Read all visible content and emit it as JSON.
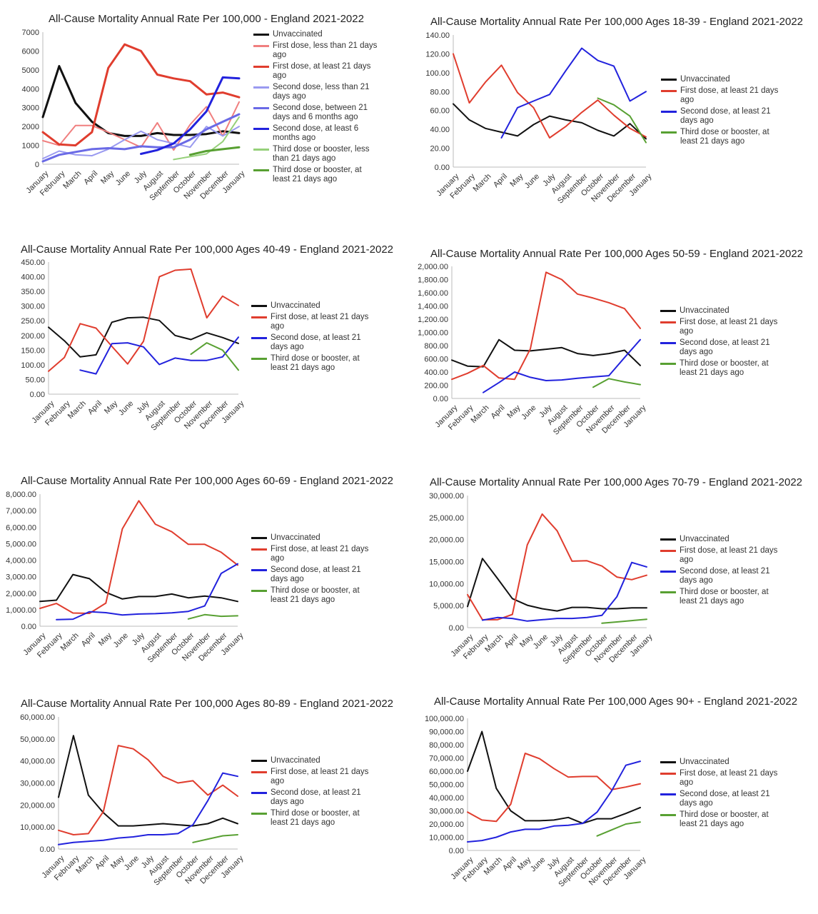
{
  "colors": {
    "black": "#111111",
    "red": "#e03d2e",
    "light_red": "#f07f7f",
    "blue": "#2222dd",
    "light_blue": "#9a9af0",
    "mid_blue": "#6a6ae6",
    "green": "#58a032",
    "light_green": "#96d07a"
  },
  "chart_data": [
    {
      "type": "line",
      "title": "All-Cause Mortality Annual Rate Per 100,000 - England 2021-2022",
      "categories": [
        "January",
        "February",
        "March",
        "April",
        "May",
        "June",
        "July",
        "August",
        "September",
        "October",
        "November",
        "December",
        "January"
      ],
      "y_ticks": [
        "0",
        "1000",
        "2000",
        "3000",
        "4000",
        "5000",
        "6000",
        "7000"
      ],
      "ylim": [
        0,
        7000
      ],
      "grid": false,
      "legend_position": "right",
      "series": [
        {
          "name": "Unvaccinated",
          "color": "black",
          "width": 3,
          "values": [
            2500,
            5200,
            3250,
            2250,
            1650,
            1500,
            1500,
            1650,
            1550,
            1550,
            1600,
            1750,
            1650
          ]
        },
        {
          "name": "First dose, less than 21 days ago",
          "color": "light_red",
          "width": 2,
          "values": [
            1250,
            1000,
            2050,
            2050,
            1700,
            1300,
            900,
            2200,
            750,
            2100,
            3050,
            1500,
            3300
          ]
        },
        {
          "name": "First dose, at least 21 days ago",
          "color": "red",
          "width": 3,
          "values": [
            1700,
            1050,
            1000,
            1700,
            5100,
            6350,
            6000,
            4750,
            4550,
            4400,
            3700,
            3800,
            3550
          ]
        },
        {
          "name": "Second dose, less than 21 days ago",
          "color": "light_blue",
          "width": 2,
          "values": [
            300,
            700,
            500,
            450,
            800,
            1300,
            1750,
            1300,
            1100,
            900,
            2000,
            1500,
            2000
          ]
        },
        {
          "name": "Second dose, between 21 days and 6 months ago",
          "color": "mid_blue",
          "width": 3,
          "values": [
            150,
            500,
            650,
            800,
            850,
            800,
            950,
            900,
            900,
            1300,
            1850,
            2250,
            2650
          ]
        },
        {
          "name": "Second dose, at least 6 months ago",
          "color": "blue",
          "width": 3,
          "values": [
            null,
            null,
            null,
            null,
            null,
            null,
            550,
            750,
            1100,
            1850,
            2800,
            4600,
            4550
          ]
        },
        {
          "name": "Third dose or booster, less than 21 days ago",
          "color": "light_green",
          "width": 2,
          "values": [
            null,
            null,
            null,
            null,
            null,
            null,
            null,
            null,
            250,
            400,
            550,
            1200,
            2500
          ]
        },
        {
          "name": "Third dose or booster, at least 21 days ago",
          "color": "green",
          "width": 3,
          "values": [
            null,
            null,
            null,
            null,
            null,
            null,
            null,
            null,
            null,
            500,
            700,
            800,
            900
          ]
        }
      ]
    },
    {
      "type": "line",
      "title": "All-Cause Mortality Annual Rate Per 100,000 Ages 18-39 - England 2021-2022",
      "categories": [
        "January",
        "February",
        "March",
        "April",
        "May",
        "June",
        "July",
        "August",
        "September",
        "October",
        "November",
        "December",
        "January"
      ],
      "y_ticks": [
        "0.00",
        "20.00",
        "40.00",
        "60.00",
        "80.00",
        "100.00",
        "120.00",
        "140.00"
      ],
      "ylim": [
        0,
        140
      ],
      "grid": false,
      "legend_position": "right",
      "series": [
        {
          "name": "Unvaccinated",
          "color": "black",
          "width": 2,
          "values": [
            67,
            50,
            41,
            37,
            33,
            45,
            54,
            50,
            47,
            39,
            33,
            46,
            30
          ]
        },
        {
          "name": "First dose, at least 21 days ago",
          "color": "red",
          "width": 2,
          "values": [
            120,
            68,
            90,
            108,
            79,
            63,
            31,
            43,
            58,
            71,
            55,
            41,
            32
          ]
        },
        {
          "name": "Second dose, at least 21 days ago",
          "color": "blue",
          "width": 2,
          "values": [
            null,
            null,
            null,
            31,
            63,
            70,
            77,
            102,
            126,
            113,
            107,
            70,
            80
          ]
        },
        {
          "name": "Third dose or booster, at least 21 days ago",
          "color": "green",
          "width": 2,
          "values": [
            null,
            null,
            null,
            null,
            null,
            null,
            null,
            null,
            null,
            73,
            66,
            54,
            26
          ]
        }
      ]
    },
    {
      "type": "line",
      "title": "All-Cause Mortality Annual Rate Per 100,000 Ages 40-49 - England 2021-2022",
      "categories": [
        "January",
        "February",
        "March",
        "April",
        "May",
        "June",
        "July",
        "August",
        "September",
        "October",
        "November",
        "December",
        "January"
      ],
      "y_ticks": [
        "0.00",
        "50.00",
        "100.00",
        "150.00",
        "200.00",
        "250.00",
        "300.00",
        "350.00",
        "400.00",
        "450.00"
      ],
      "ylim": [
        0,
        450
      ],
      "grid": false,
      "legend_position": "right",
      "series": [
        {
          "name": "Unvaccinated",
          "color": "black",
          "width": 2,
          "values": [
            228,
            182,
            127,
            134,
            245,
            260,
            262,
            251,
            200,
            186,
            209,
            193,
            173
          ]
        },
        {
          "name": "First dose, at least 21 days ago",
          "color": "red",
          "width": 2,
          "values": [
            78,
            125,
            240,
            225,
            163,
            103,
            180,
            400,
            422,
            426,
            260,
            334,
            302
          ]
        },
        {
          "name": "Second dose, at least 21 days ago",
          "color": "blue",
          "width": 2,
          "values": [
            null,
            null,
            82,
            69,
            172,
            175,
            161,
            101,
            123,
            115,
            115,
            127,
            194
          ]
        },
        {
          "name": "Third dose or booster, at least 21 days ago",
          "color": "green",
          "width": 2,
          "values": [
            null,
            null,
            null,
            null,
            null,
            null,
            null,
            null,
            null,
            136,
            175,
            150,
            82
          ]
        }
      ]
    },
    {
      "type": "line",
      "title": "All-Cause Mortality Annual Rate Per 100,000 Ages 50-59 - England 2021-2022",
      "categories": [
        "January",
        "February",
        "March",
        "April",
        "May",
        "June",
        "July",
        "August",
        "September",
        "October",
        "November",
        "December",
        "January"
      ],
      "y_ticks": [
        "0.00",
        "200.00",
        "400.00",
        "600.00",
        "800.00",
        "1,000.00",
        "1,200.00",
        "1,400.00",
        "1,600.00",
        "1,800.00",
        "2,000.00"
      ],
      "ylim": [
        0,
        2000
      ],
      "grid": false,
      "legend_position": "right",
      "series": [
        {
          "name": "Unvaccinated",
          "color": "black",
          "width": 2,
          "values": [
            580,
            490,
            480,
            890,
            730,
            720,
            745,
            770,
            680,
            650,
            680,
            730,
            500
          ]
        },
        {
          "name": "First dose, at least 21 days ago",
          "color": "red",
          "width": 2,
          "values": [
            290,
            380,
            500,
            310,
            290,
            750,
            1910,
            1800,
            1580,
            1520,
            1450,
            1360,
            1060
          ]
        },
        {
          "name": "Second dose, at least 21 days ago",
          "color": "blue",
          "width": 2,
          "values": [
            null,
            null,
            90,
            240,
            400,
            320,
            270,
            280,
            305,
            325,
            345,
            620,
            890
          ]
        },
        {
          "name": "Third dose or booster, at least 21 days ago",
          "color": "green",
          "width": 2,
          "values": [
            null,
            null,
            null,
            null,
            null,
            null,
            null,
            null,
            null,
            170,
            300,
            250,
            210
          ]
        }
      ]
    },
    {
      "type": "line",
      "title": "All-Cause Mortality Annual Rate Per 100,000 Ages 60-69 - England 2021-2022",
      "categories": [
        "January",
        "February",
        "March",
        "April",
        "May",
        "June",
        "July",
        "August",
        "September",
        "October",
        "November",
        "December",
        "January"
      ],
      "y_ticks": [
        "0.00",
        "1,000.00",
        "2,000.00",
        "3,000.00",
        "4,000.00",
        "5,000.00",
        "6,000.00",
        "7,000.00",
        "8,000.00"
      ],
      "ylim": [
        0,
        8000
      ],
      "grid": false,
      "legend_position": "right",
      "series": [
        {
          "name": "Unvaccinated",
          "color": "black",
          "width": 2,
          "values": [
            1500,
            1580,
            3130,
            2880,
            2050,
            1650,
            1800,
            1800,
            1950,
            1720,
            1830,
            1720,
            1500
          ]
        },
        {
          "name": "First dose, at least 21 days ago",
          "color": "red",
          "width": 2,
          "values": [
            1080,
            1380,
            800,
            780,
            1400,
            5900,
            7600,
            6180,
            5720,
            4960,
            4960,
            4480,
            3700
          ]
        },
        {
          "name": "Second dose, at least 21 days ago",
          "color": "blue",
          "width": 2,
          "values": [
            null,
            400,
            430,
            880,
            820,
            680,
            740,
            760,
            810,
            900,
            1230,
            3200,
            3780
          ]
        },
        {
          "name": "Third dose or booster, at least 21 days ago",
          "color": "green",
          "width": 2,
          "values": [
            null,
            null,
            null,
            null,
            null,
            null,
            null,
            null,
            null,
            440,
            700,
            600,
            630
          ]
        }
      ]
    },
    {
      "type": "line",
      "title": "All-Cause Mortality Annual Rate Per 100,000 Ages 70-79 - England 2021-2022",
      "categories": [
        "January",
        "February",
        "March",
        "April",
        "May",
        "June",
        "July",
        "August",
        "September",
        "October",
        "November",
        "December",
        "January"
      ],
      "y_ticks": [
        "0.00",
        "5,000.00",
        "10,000.00",
        "15,000.00",
        "20,000.00",
        "25,000.00",
        "30,000.00"
      ],
      "ylim": [
        0,
        30000
      ],
      "grid": false,
      "legend_position": "right",
      "series": [
        {
          "name": "Unvaccinated",
          "color": "black",
          "width": 2,
          "values": [
            4800,
            15700,
            11200,
            6600,
            5100,
            4300,
            3800,
            4600,
            4600,
            4300,
            4300,
            4500,
            4500
          ]
        },
        {
          "name": "First dose, at least 21 days ago",
          "color": "red",
          "width": 2,
          "values": [
            7500,
            1800,
            1800,
            3000,
            18800,
            25800,
            22000,
            15100,
            15200,
            14000,
            11500,
            10900,
            11900
          ]
        },
        {
          "name": "Second dose, at least 21 days ago",
          "color": "blue",
          "width": 2,
          "values": [
            null,
            1700,
            2300,
            2100,
            1500,
            1800,
            2100,
            2100,
            2300,
            2800,
            7000,
            14800,
            13800
          ]
        },
        {
          "name": "Third dose or booster, at least 21 days ago",
          "color": "green",
          "width": 2,
          "values": [
            null,
            null,
            null,
            null,
            null,
            null,
            null,
            null,
            null,
            1000,
            1300,
            1600,
            1900
          ]
        }
      ]
    },
    {
      "type": "line",
      "title": "All-Cause Mortality Annual Rate Per 100,000 Ages 80-89 - England 2021-2022",
      "categories": [
        "January",
        "February",
        "March",
        "April",
        "May",
        "June",
        "July",
        "August",
        "September",
        "October",
        "November",
        "December",
        "January"
      ],
      "y_ticks": [
        "0.00",
        "10,000.00",
        "20,000.00",
        "30,000.00",
        "40,000.00",
        "50,000.00",
        "60,000.00"
      ],
      "ylim": [
        0,
        60000
      ],
      "grid": false,
      "legend_position": "right",
      "series": [
        {
          "name": "Unvaccinated",
          "color": "black",
          "width": 2,
          "values": [
            23500,
            51500,
            24500,
            16500,
            10500,
            10500,
            11000,
            11500,
            11000,
            10500,
            11500,
            14000,
            11500
          ]
        },
        {
          "name": "First dose, at least 21 days ago",
          "color": "red",
          "width": 2,
          "values": [
            8500,
            6500,
            7000,
            17000,
            47000,
            45500,
            40500,
            33000,
            30000,
            31000,
            24500,
            29000,
            24000
          ]
        },
        {
          "name": "Second dose, at least 21 days ago",
          "color": "blue",
          "width": 2,
          "values": [
            2000,
            3000,
            3500,
            4000,
            5000,
            5500,
            6500,
            6500,
            7000,
            11000,
            22000,
            34500,
            33000
          ]
        },
        {
          "name": "Third dose or booster, at least 21 days ago",
          "color": "green",
          "width": 2,
          "values": [
            null,
            null,
            null,
            null,
            null,
            null,
            null,
            null,
            null,
            3000,
            4500,
            6000,
            6500
          ]
        }
      ]
    },
    {
      "type": "line",
      "title": "All-Cause Mortality Annual Rate Per 100,000 Ages 90+ - England 2021-2022",
      "categories": [
        "January",
        "February",
        "March",
        "April",
        "May",
        "June",
        "July",
        "August",
        "September",
        "October",
        "November",
        "December",
        "January"
      ],
      "y_ticks": [
        "0.00",
        "10,000.00",
        "20,000.00",
        "30,000.00",
        "40,000.00",
        "50,000.00",
        "60,000.00",
        "70,000.00",
        "80,000.00",
        "90,000.00",
        "100,000.00"
      ],
      "ylim": [
        0,
        100000
      ],
      "grid": false,
      "legend_position": "right",
      "series": [
        {
          "name": "Unvaccinated",
          "color": "black",
          "width": 2,
          "values": [
            60000,
            90000,
            47000,
            30000,
            22500,
            22500,
            23000,
            25000,
            20500,
            24000,
            24000,
            28000,
            32500
          ]
        },
        {
          "name": "First dose, at least 21 days ago",
          "color": "red",
          "width": 2,
          "values": [
            29000,
            23000,
            22000,
            35000,
            73500,
            69500,
            62000,
            55500,
            56000,
            56000,
            46000,
            48000,
            50500
          ]
        },
        {
          "name": "Second dose, at least 21 days ago",
          "color": "blue",
          "width": 2,
          "values": [
            6500,
            7500,
            10000,
            14000,
            16000,
            16000,
            18500,
            19000,
            20500,
            29000,
            45000,
            64500,
            67500
          ]
        },
        {
          "name": "Third dose or booster, at least 21 days ago",
          "color": "green",
          "width": 2,
          "values": [
            null,
            null,
            null,
            null,
            null,
            null,
            null,
            null,
            null,
            11000,
            15500,
            20000,
            21500
          ]
        }
      ]
    }
  ]
}
